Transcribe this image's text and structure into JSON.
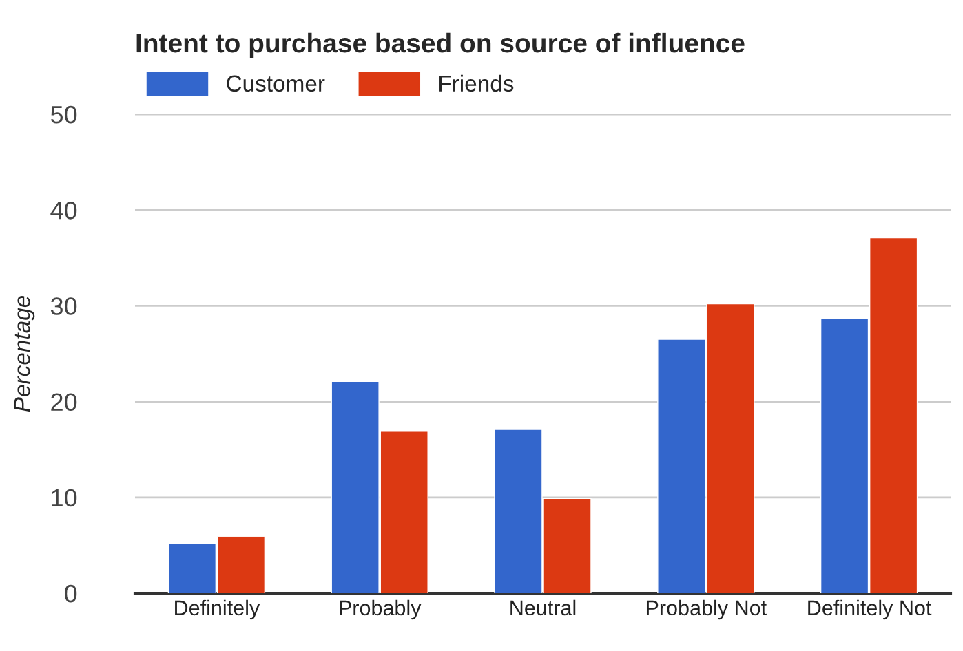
{
  "chart_data": {
    "type": "bar",
    "title": "Intent to purchase based on source of influence",
    "ylabel": "Percentage",
    "categories": [
      "Definitely",
      "Probably",
      "Neutral",
      "Probably Not",
      "Definitely Not"
    ],
    "series": [
      {
        "name": "Customer",
        "color": "#3366cc",
        "values": [
          5.2,
          22.1,
          17.1,
          26.5,
          28.7
        ]
      },
      {
        "name": "Friends",
        "color": "#dc3912",
        "values": [
          5.9,
          16.9,
          9.9,
          30.2,
          37.1
        ]
      }
    ],
    "ylim": [
      0,
      50
    ],
    "yticks": [
      0,
      10,
      20,
      30,
      40,
      50
    ],
    "grid": "y",
    "legend": "top left"
  }
}
